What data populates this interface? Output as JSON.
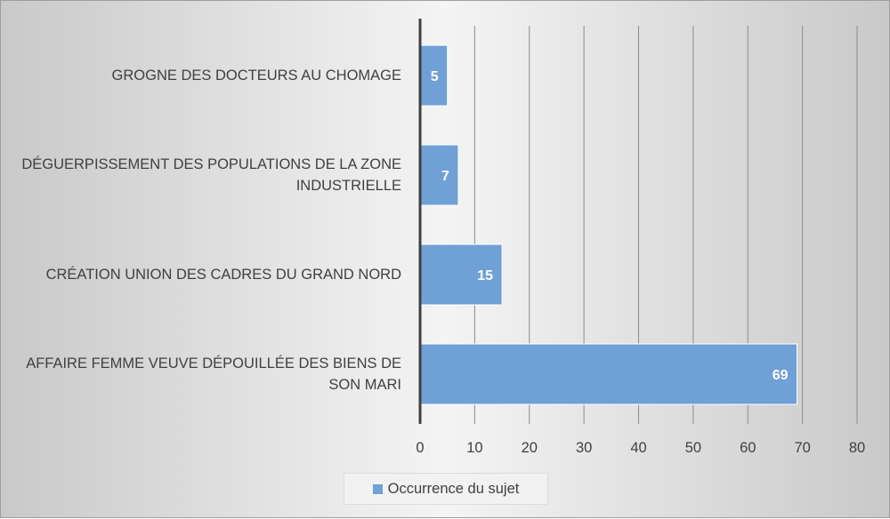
{
  "chart_data": {
    "type": "bar",
    "orientation": "horizontal",
    "categories": [
      "GROGNE DES DOCTEURS AU CHOMAGE",
      "DÉGUERPISSEMENT DES POPULATIONS DE LA ZONE INDUSTRIELLE",
      "CRÉATION UNION DES CADRES DU GRAND NORD",
      "AFFAIRE FEMME VEUVE DÉPOUILLÉE DES BIENS DE SON MARI"
    ],
    "series": [
      {
        "name": "Occurrence du sujet",
        "values": [
          5,
          7,
          15,
          69
        ],
        "color": "#6fa0d6"
      }
    ],
    "xlim": [
      0,
      80
    ],
    "xticks": [
      "0",
      "10",
      "20",
      "30",
      "40",
      "50",
      "60",
      "70",
      "80"
    ],
    "title": "",
    "xlabel": "",
    "ylabel": "",
    "grid": true,
    "legend_position": "bottom"
  },
  "colors": {
    "bar": "#6fa0d6",
    "bar_edge": "#ffffff",
    "axis": "#404040",
    "grid": "#8c8c8c"
  }
}
